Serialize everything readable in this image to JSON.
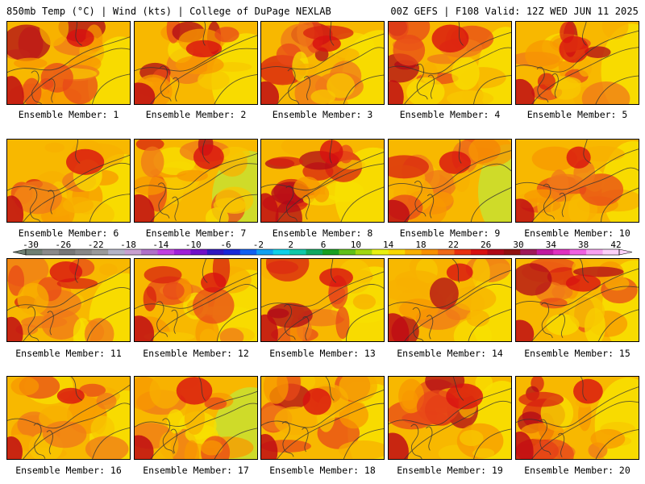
{
  "header": {
    "left": "850mb Temp (°C) | Wind (kts) | College of DuPage NEXLAB",
    "right": "00Z GEFS | F108 Valid: 12Z WED JUN 11 2025"
  },
  "colorbar": {
    "ticks": [
      "-30",
      "-26",
      "-22",
      "-18",
      "-14",
      "-10",
      "-6",
      "-2",
      "2",
      "6",
      "10",
      "14",
      "18",
      "22",
      "26",
      "30",
      "34",
      "38",
      "42"
    ],
    "colors": [
      "#6e7f72",
      "#8a8a8a",
      "#777777",
      "#888888",
      "#9a9a9a",
      "#b4b4c8",
      "#c8a0d0",
      "#b070c8",
      "#c040e0",
      "#a020d8",
      "#7010c8",
      "#3018c0",
      "#1828d8",
      "#1060f0",
      "#10a0f0",
      "#10d0e8",
      "#10c8a8",
      "#10a860",
      "#18a020",
      "#60c018",
      "#a0d810",
      "#e8f010",
      "#f8d800",
      "#f8b000",
      "#f89000",
      "#f06818",
      "#e83010",
      "#d81010",
      "#b00818",
      "#901010",
      "#a01858",
      "#c018a0",
      "#e030c0",
      "#f060e0",
      "#f8a0f0",
      "#fcd0f8"
    ]
  },
  "panels": [
    {
      "label": "Ensemble Member: 1"
    },
    {
      "label": "Ensemble Member: 2"
    },
    {
      "label": "Ensemble Member: 3"
    },
    {
      "label": "Ensemble Member: 4"
    },
    {
      "label": "Ensemble Member: 5"
    },
    {
      "label": "Ensemble Member: 6"
    },
    {
      "label": "Ensemble Member: 7"
    },
    {
      "label": "Ensemble Member: 8"
    },
    {
      "label": "Ensemble Member: 9"
    },
    {
      "label": "Ensemble Member: 10"
    },
    {
      "label": "Ensemble Member: 11"
    },
    {
      "label": "Ensemble Member: 12"
    },
    {
      "label": "Ensemble Member: 13"
    },
    {
      "label": "Ensemble Member: 14"
    },
    {
      "label": "Ensemble Member: 15"
    },
    {
      "label": "Ensemble Member: 16"
    },
    {
      "label": "Ensemble Member: 17"
    },
    {
      "label": "Ensemble Member: 18"
    },
    {
      "label": "Ensemble Member: 19"
    },
    {
      "label": "Ensemble Member: 20"
    }
  ]
}
